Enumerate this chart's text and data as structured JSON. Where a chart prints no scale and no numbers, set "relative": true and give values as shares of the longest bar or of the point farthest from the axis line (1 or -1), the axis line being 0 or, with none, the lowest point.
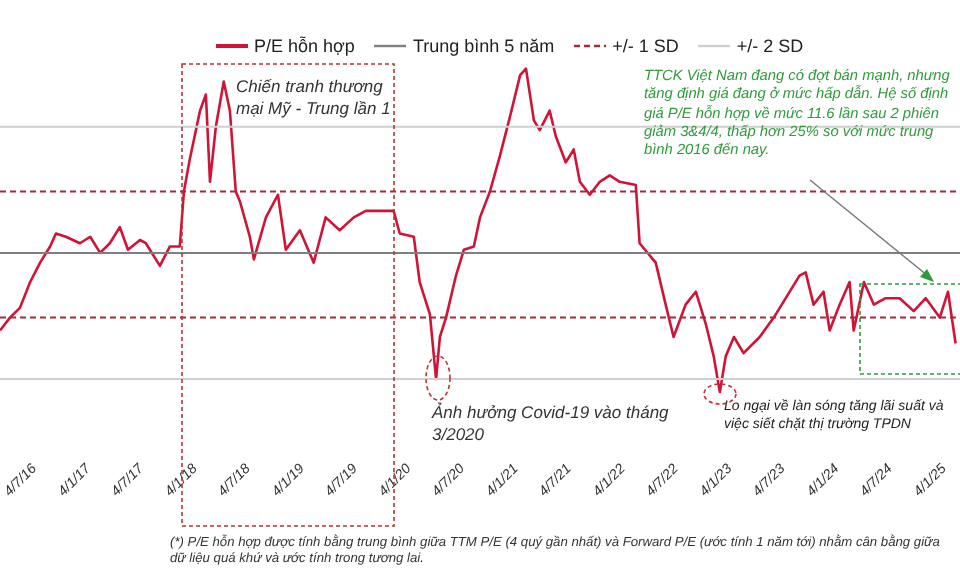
{
  "chart_data": {
    "type": "line",
    "relative": true,
    "legend": "top",
    "grid": false,
    "marker": "none",
    "tick_labels": "x",
    "xlim": [
      "2016-03-09",
      "2025-02-28"
    ],
    "xticks": [
      {
        "value": "2016-07-04",
        "label": "4/7/16"
      },
      {
        "value": "2017-01-04",
        "label": "4/1/17"
      },
      {
        "value": "2017-07-04",
        "label": "4/7/17"
      },
      {
        "value": "2018-01-04",
        "label": "4/1/18"
      },
      {
        "value": "2018-07-04",
        "label": "4/7/18"
      },
      {
        "value": "2019-01-04",
        "label": "4/1/19"
      },
      {
        "value": "2019-07-04",
        "label": "4/7/19"
      },
      {
        "value": "2020-01-04",
        "label": "4/1/20"
      },
      {
        "value": "2020-07-04",
        "label": "4/7/20"
      },
      {
        "value": "2021-01-04",
        "label": "4/1/21"
      },
      {
        "value": "2021-07-04",
        "label": "4/7/21"
      },
      {
        "value": "2022-01-04",
        "label": "4/1/22"
      },
      {
        "value": "2022-07-04",
        "label": "4/7/22"
      },
      {
        "value": "2023-01-04",
        "label": "4/1/23"
      },
      {
        "value": "2023-07-04",
        "label": "4/7/23"
      },
      {
        "value": "2024-01-04",
        "label": "4/1/24"
      },
      {
        "value": "2024-07-04",
        "label": "4/7/24"
      },
      {
        "value": "2025-01-04",
        "label": "4/1/25"
      }
    ],
    "x": [
      "2016-03-09",
      "2016-04-12",
      "2016-05-16",
      "2016-06-20",
      "2016-07-24",
      "2016-08-27",
      "2016-09-16",
      "2016-10-20",
      "2016-12-07",
      "2017-01-11",
      "2017-02-14",
      "2017-03-19",
      "2017-04-22",
      "2017-05-20",
      "2017-06-30",
      "2017-07-20",
      "2017-09-06",
      "2017-10-10",
      "2017-11-13",
      "2017-11-27",
      "2017-12-17",
      "2018-01-21",
      "2018-02-10",
      "2018-02-24",
      "2018-03-16",
      "2018-04-12",
      "2018-05-03",
      "2018-05-23",
      "2018-06-06",
      "2018-07-10",
      "2018-07-24",
      "2018-09-03",
      "2018-10-14",
      "2018-11-10",
      "2018-12-28",
      "2019-02-13",
      "2019-03-26",
      "2019-05-13",
      "2019-06-30",
      "2019-08-10",
      "2019-09-26",
      "2019-11-13",
      "2019-12-04",
      "2020-01-21",
      "2020-02-10",
      "2020-03-16",
      "2020-04-06",
      "2020-04-19",
      "2020-05-10",
      "2020-06-13",
      "2020-07-10",
      "2020-08-13",
      "2020-09-03",
      "2020-10-07",
      "2020-11-10",
      "2020-12-14",
      "2021-01-18",
      "2021-02-07",
      "2021-03-06",
      "2021-03-26",
      "2021-04-29",
      "2021-05-20",
      "2021-06-23",
      "2021-07-20",
      "2021-08-10",
      "2021-09-13",
      "2021-10-17",
      "2021-11-20",
      "2021-12-24",
      "2022-02-17",
      "2022-03-02",
      "2022-04-26",
      "2022-05-30",
      "2022-06-26",
      "2022-08-06",
      "2022-09-10",
      "2022-10-14",
      "2022-11-10",
      "2022-12-01",
      "2022-12-21",
      "2023-01-18",
      "2023-02-20",
      "2023-04-16",
      "2023-06-03",
      "2023-07-14",
      "2023-08-30",
      "2023-09-20",
      "2023-10-17",
      "2023-11-20",
      "2023-12-11",
      "2024-01-14",
      "2024-02-17",
      "2024-03-02",
      "2024-04-06",
      "2024-05-10",
      "2024-06-19",
      "2024-08-06",
      "2024-09-23",
      "2024-11-03",
      "2024-12-21",
      "2025-01-18",
      "2025-02-13"
    ],
    "series": [
      {
        "name": "P/E hỗn hợp",
        "color": "#d01437",
        "values": [
          0.19,
          0.23,
          0.26,
          0.34,
          0.4,
          0.45,
          0.49,
          0.48,
          0.46,
          0.48,
          0.43,
          0.46,
          0.51,
          0.44,
          0.47,
          0.46,
          0.39,
          0.45,
          0.45,
          0.62,
          0.72,
          0.87,
          0.92,
          0.65,
          0.82,
          0.96,
          0.87,
          0.62,
          0.59,
          0.48,
          0.41,
          0.54,
          0.61,
          0.44,
          0.5,
          0.4,
          0.54,
          0.5,
          0.54,
          0.56,
          0.56,
          0.56,
          0.49,
          0.48,
          0.34,
          0.24,
          0.04,
          0.17,
          0.23,
          0.36,
          0.44,
          0.45,
          0.54,
          0.62,
          0.73,
          0.85,
          0.98,
          1.0,
          0.84,
          0.81,
          0.87,
          0.79,
          0.71,
          0.75,
          0.65,
          0.61,
          0.65,
          0.67,
          0.65,
          0.64,
          0.46,
          0.4,
          0.27,
          0.17,
          0.27,
          0.31,
          0.21,
          0.11,
          0,
          0.11,
          0.17,
          0.12,
          0.17,
          0.23,
          0.29,
          0.36,
          0.37,
          0.27,
          0.31,
          0.19,
          0.27,
          0.34,
          0.19,
          0.34,
          0.27,
          0.29,
          0.29,
          0.25,
          0.29,
          0.23,
          0.31,
          0.15
        ]
      },
      {
        "name": "Trung bình 5 năm",
        "color": "#7f7f7f",
        "x": [
          "2016-03-09",
          "2025-02-28"
        ],
        "values": [
          0.43,
          0.43
        ]
      },
      {
        "name": "+/- 1 SD",
        "color": "#a8283c",
        "line_style": "dashed",
        "x": [
          "2016-03-09",
          "2025-02-28"
        ],
        "values": [
          0.62,
          0.62
        ]
      },
      {
        "color": "#a8283c",
        "line_style": "dashed",
        "x": [
          "2016-03-09",
          "2025-02-28"
        ],
        "values": [
          0.23,
          0.23
        ]
      },
      {
        "name": "+/- 2 SD",
        "color": "#cfcfcf",
        "x": [
          "2016-03-09",
          "2025-02-28"
        ],
        "values": [
          0.82,
          0.82
        ]
      },
      {
        "color": "#cfcfcf",
        "x": [
          "2016-03-09",
          "2025-02-28"
        ],
        "values": [
          0.04,
          0.04
        ]
      }
    ],
    "annotations": [
      "Chiến tranh thương mại Mỹ - Trung lần 1",
      "Ảnh hưởng Covid-19 vào tháng 3/2020",
      "Lo ngại về làn sóng tăng lãi suất và việc siết chặt thị trường TPDN",
      "TTCK Việt Nam đang có đợt bán mạnh, nhưng tăng định giá đang ở mức hấp dẫn. Hệ số định giá P/E hỗn hợp về mức 11.6 lần sau 2 phiên giảm 3&4/4, thấp hơn 25% so với mức trung bình 2016 đến nay.",
      "(*) P/E hỗn hợp được tính bằng trung bình giữa TTM P/E (4 quý gần nhất) và Forward P/E (ước tính 1 năm tới) nhằm cân bằng giữa dữ liệu quá khứ và ước tính trong tương lai."
    ]
  }
}
